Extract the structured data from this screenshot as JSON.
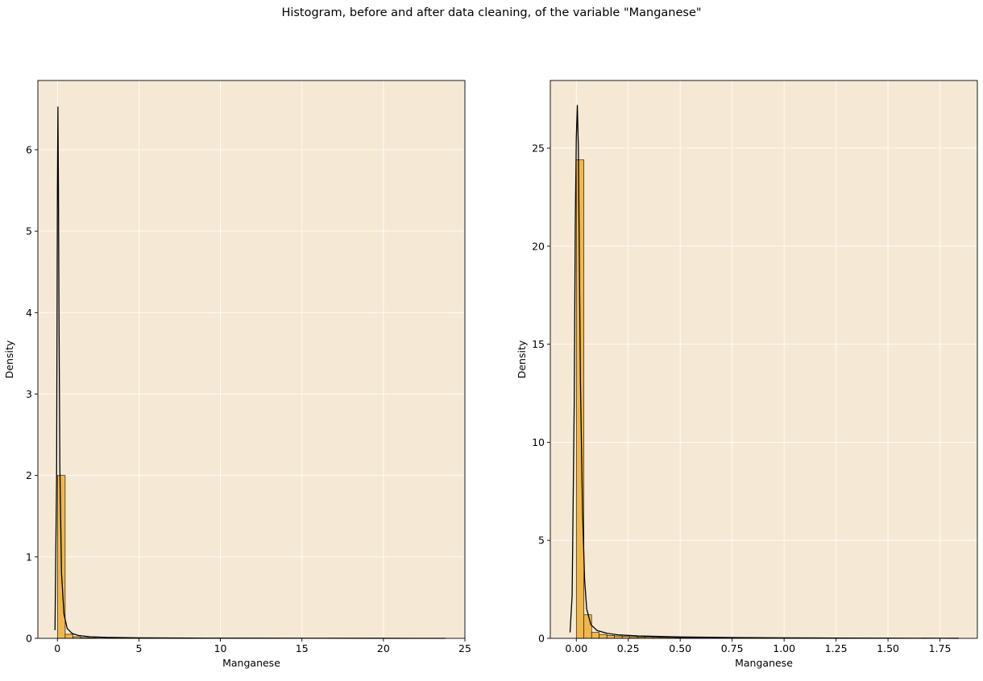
{
  "figure": {
    "suptitle": "Histogram, before and after data cleaning, of the variable \"Manganese\"",
    "background": "#ffffff"
  },
  "colors": {
    "axes_background": "#f5e9d5",
    "grid": "#ffffff",
    "bar_fill": "#f0b84c",
    "bar_edge": "#000000",
    "kde_line": "#000000"
  },
  "chart_data": [
    {
      "type": "bar",
      "subtype": "histogram_with_kde",
      "title": "",
      "xlabel": "Manganese",
      "ylabel": "Density",
      "xlim": [
        -1.2,
        25.0
      ],
      "ylim": [
        0,
        6.85
      ],
      "xticks": [
        0,
        5,
        10,
        15,
        20,
        25
      ],
      "yticks": [
        0,
        1,
        2,
        3,
        4,
        5,
        6
      ],
      "grid": true,
      "bin_edges": [
        0.0,
        0.476,
        0.952,
        1.428,
        1.904,
        2.38,
        2.856,
        3.332,
        3.808,
        4.284,
        4.76,
        5.236,
        5.712,
        6.188,
        6.664,
        7.14,
        7.616,
        8.092,
        8.568,
        9.044,
        9.52,
        9.996,
        10.472,
        10.948,
        11.424,
        11.9,
        12.376,
        12.852,
        13.328,
        13.804,
        14.28,
        14.756,
        15.232,
        15.708,
        16.184,
        16.66,
        17.136,
        17.612,
        18.088,
        18.564,
        19.04,
        19.516,
        19.992,
        20.468,
        20.944,
        21.42,
        21.896,
        22.372,
        22.848,
        23.324,
        23.8
      ],
      "values": [
        2.0,
        0.05,
        0.02,
        0.01,
        0.006,
        0.004,
        0.003,
        0.002,
        0.002,
        0.001,
        0.001,
        0.001,
        0.001,
        0.0,
        0.0,
        0.0,
        0.0,
        0.0,
        0.0,
        0.0,
        0.0,
        0.0,
        0.0,
        0.0,
        0.0,
        0.0,
        0.0,
        0.0,
        0.0,
        0.0,
        0.0,
        0.0,
        0.0,
        0.0,
        0.0,
        0.0,
        0.0,
        0.0,
        0.0,
        0.0,
        0.0,
        0.0,
        0.0,
        0.0,
        0.0,
        0.0,
        0.0,
        0.0,
        0.0,
        0.0
      ],
      "kde": {
        "x": [
          -0.15,
          -0.05,
          0.0,
          0.03,
          0.06,
          0.1,
          0.15,
          0.25,
          0.4,
          0.6,
          0.9,
          1.3,
          2.0,
          3.0,
          5.0,
          8.0,
          12.0,
          16.0,
          20.0,
          23.8
        ],
        "y": [
          0.1,
          2.0,
          5.5,
          6.53,
          5.6,
          3.8,
          2.1,
          0.8,
          0.3,
          0.12,
          0.06,
          0.035,
          0.02,
          0.012,
          0.006,
          0.003,
          0.002,
          0.001,
          0.0005,
          0.0002
        ]
      }
    },
    {
      "type": "bar",
      "subtype": "histogram_with_kde",
      "title": "",
      "xlabel": "Manganese",
      "ylabel": "Density",
      "xlim": [
        -0.125,
        1.93
      ],
      "ylim": [
        0,
        28.45
      ],
      "xticks": [
        0.0,
        0.25,
        0.5,
        0.75,
        1.0,
        1.25,
        1.5,
        1.75
      ],
      "xtick_labels": [
        "0.00",
        "0.25",
        "0.50",
        "0.75",
        "1.00",
        "1.25",
        "1.50",
        "1.75"
      ],
      "yticks": [
        0,
        5,
        10,
        15,
        20,
        25
      ],
      "grid": true,
      "bin_edges": [
        0.0,
        0.0368,
        0.0736,
        0.1104,
        0.1472,
        0.184,
        0.2208,
        0.2576,
        0.2944,
        0.3312,
        0.368,
        0.4048,
        0.4416,
        0.4784,
        0.5152,
        0.552,
        0.5888,
        0.6256,
        0.6624,
        0.6992,
        0.736,
        0.7728,
        0.8096,
        0.8464,
        0.8832,
        0.92,
        0.9568,
        0.9936,
        1.0304,
        1.0672,
        1.104,
        1.1408,
        1.1776,
        1.2144,
        1.2512,
        1.288,
        1.3248,
        1.3616,
        1.3984,
        1.4352,
        1.472,
        1.5088,
        1.5456,
        1.5824,
        1.6192,
        1.656,
        1.6928,
        1.7296,
        1.7664,
        1.8032,
        1.84
      ],
      "values": [
        24.4,
        1.2,
        0.3,
        0.2,
        0.15,
        0.12,
        0.1,
        0.08,
        0.07,
        0.06,
        0.05,
        0.045,
        0.04,
        0.035,
        0.03,
        0.028,
        0.025,
        0.022,
        0.02,
        0.018,
        0.016,
        0.015,
        0.014,
        0.012,
        0.011,
        0.01,
        0.01,
        0.009,
        0.008,
        0.008,
        0.007,
        0.006,
        0.006,
        0.005,
        0.005,
        0.004,
        0.004,
        0.003,
        0.003,
        0.003,
        0.002,
        0.002,
        0.002,
        0.002,
        0.001,
        0.001,
        0.001,
        0.001,
        0.001,
        0.001
      ],
      "kde": {
        "x": [
          -0.03,
          -0.02,
          -0.01,
          -0.005,
          0.0,
          0.005,
          0.01,
          0.015,
          0.02,
          0.03,
          0.04,
          0.05,
          0.07,
          0.1,
          0.15,
          0.2,
          0.3,
          0.5,
          0.75,
          1.0,
          1.25,
          1.5,
          1.75,
          1.84
        ],
        "y": [
          0.3,
          2.2,
          12.0,
          21.0,
          25.5,
          27.2,
          25.0,
          19.0,
          13.0,
          6.5,
          3.0,
          1.5,
          0.7,
          0.4,
          0.25,
          0.18,
          0.12,
          0.07,
          0.04,
          0.025,
          0.015,
          0.01,
          0.005,
          0.003
        ]
      }
    }
  ]
}
